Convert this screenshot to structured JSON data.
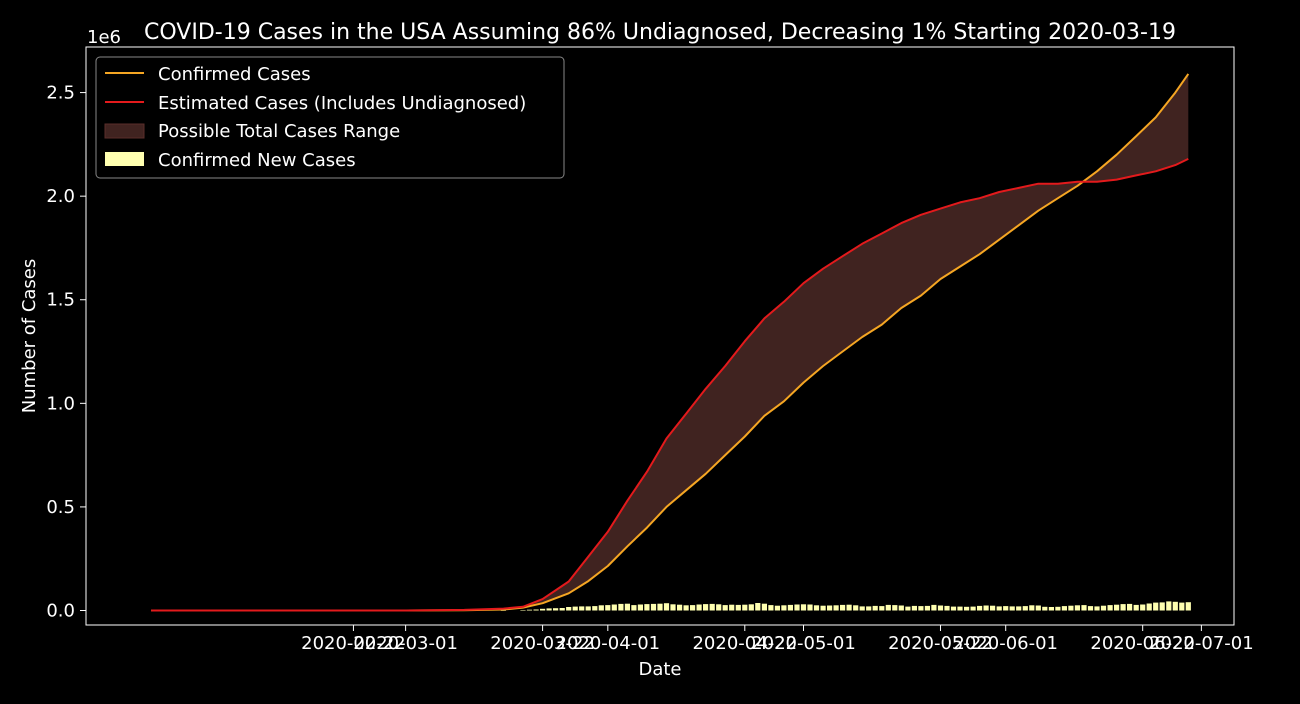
{
  "chart_data": {
    "type": "line",
    "title": "COVID-19 Cases in the USA Assuming 86% Undiagnosed, Decreasing 1% Starting 2020-03-19",
    "xlabel": "Date",
    "ylabel": "Number of Cases",
    "y_multiplier_label": "1e6",
    "ylim": [
      -0.07,
      2.72
    ],
    "xlim": [
      "2020-01-12",
      "2020-07-06"
    ],
    "y_ticks": [
      0.0,
      0.5,
      1.0,
      1.5,
      2.0,
      2.5
    ],
    "y_tick_labels": [
      "0.0",
      "0.5",
      "1.0",
      "1.5",
      "2.0",
      "2.5"
    ],
    "x_ticks": [
      "2020-02-22",
      "2020-03-01",
      "2020-03-22",
      "2020-04-01",
      "2020-04-22",
      "2020-05-01",
      "2020-05-22",
      "2020-06-01",
      "2020-06-22",
      "2020-07-01"
    ],
    "x_tick_labels": [
      "2020-02-22",
      "2020-03-01",
      "2020-03-22",
      "2020-04-01",
      "2020-04-22",
      "2020-05-01",
      "2020-05-22",
      "2020-06-01",
      "2020-06-22",
      "2020-07-01"
    ],
    "legend_placement": "top-left",
    "grid": false,
    "colors": {
      "background": "#000000",
      "text": "#ffffff",
      "confirmed": "#f5a623",
      "estimated": "#e31a1c",
      "range_fill": "#402320",
      "new_cases": "#ffffb0"
    },
    "series": [
      {
        "name": "Confirmed Cases",
        "kind": "line",
        "color": "#f5a623",
        "points": [
          [
            "2020-01-22",
            0.0
          ],
          [
            "2020-03-01",
            0.0
          ],
          [
            "2020-03-10",
            0.001
          ],
          [
            "2020-03-16",
            0.005
          ],
          [
            "2020-03-19",
            0.014
          ],
          [
            "2020-03-22",
            0.035
          ],
          [
            "2020-03-26",
            0.083
          ],
          [
            "2020-03-29",
            0.142
          ],
          [
            "2020-04-01",
            0.215
          ],
          [
            "2020-04-04",
            0.31
          ],
          [
            "2020-04-07",
            0.4
          ],
          [
            "2020-04-10",
            0.5
          ],
          [
            "2020-04-13",
            0.58
          ],
          [
            "2020-04-16",
            0.66
          ],
          [
            "2020-04-19",
            0.75
          ],
          [
            "2020-04-22",
            0.84
          ],
          [
            "2020-04-25",
            0.94
          ],
          [
            "2020-04-28",
            1.01
          ],
          [
            "2020-05-01",
            1.1
          ],
          [
            "2020-05-04",
            1.18
          ],
          [
            "2020-05-07",
            1.25
          ],
          [
            "2020-05-10",
            1.32
          ],
          [
            "2020-05-13",
            1.38
          ],
          [
            "2020-05-16",
            1.46
          ],
          [
            "2020-05-19",
            1.52
          ],
          [
            "2020-05-22",
            1.6
          ],
          [
            "2020-05-25",
            1.66
          ],
          [
            "2020-05-28",
            1.72
          ],
          [
            "2020-05-31",
            1.79
          ],
          [
            "2020-06-03",
            1.86
          ],
          [
            "2020-06-06",
            1.93
          ],
          [
            "2020-06-09",
            1.99
          ],
          [
            "2020-06-12",
            2.05
          ],
          [
            "2020-06-15",
            2.12
          ],
          [
            "2020-06-18",
            2.2
          ],
          [
            "2020-06-21",
            2.29
          ],
          [
            "2020-06-24",
            2.38
          ],
          [
            "2020-06-27",
            2.5
          ],
          [
            "2020-06-29",
            2.59
          ]
        ]
      },
      {
        "name": "Estimated Cases (Includes Undiagnosed)",
        "kind": "line",
        "color": "#e31a1c",
        "points": [
          [
            "2020-01-22",
            0.0
          ],
          [
            "2020-03-01",
            0.0
          ],
          [
            "2020-03-10",
            0.003
          ],
          [
            "2020-03-16",
            0.009
          ],
          [
            "2020-03-19",
            0.018
          ],
          [
            "2020-03-22",
            0.055
          ],
          [
            "2020-03-26",
            0.14
          ],
          [
            "2020-03-29",
            0.26
          ],
          [
            "2020-04-01",
            0.38
          ],
          [
            "2020-04-04",
            0.53
          ],
          [
            "2020-04-07",
            0.67
          ],
          [
            "2020-04-10",
            0.83
          ],
          [
            "2020-04-13",
            0.95
          ],
          [
            "2020-04-16",
            1.07
          ],
          [
            "2020-04-19",
            1.18
          ],
          [
            "2020-04-22",
            1.3
          ],
          [
            "2020-04-25",
            1.41
          ],
          [
            "2020-04-28",
            1.49
          ],
          [
            "2020-05-01",
            1.58
          ],
          [
            "2020-05-04",
            1.65
          ],
          [
            "2020-05-07",
            1.71
          ],
          [
            "2020-05-10",
            1.77
          ],
          [
            "2020-05-13",
            1.82
          ],
          [
            "2020-05-16",
            1.87
          ],
          [
            "2020-05-19",
            1.91
          ],
          [
            "2020-05-22",
            1.94
          ],
          [
            "2020-05-25",
            1.97
          ],
          [
            "2020-05-28",
            1.99
          ],
          [
            "2020-05-31",
            2.02
          ],
          [
            "2020-06-03",
            2.04
          ],
          [
            "2020-06-06",
            2.06
          ],
          [
            "2020-06-09",
            2.06
          ],
          [
            "2020-06-12",
            2.07
          ],
          [
            "2020-06-15",
            2.07
          ],
          [
            "2020-06-18",
            2.08
          ],
          [
            "2020-06-21",
            2.1
          ],
          [
            "2020-06-24",
            2.12
          ],
          [
            "2020-06-27",
            2.15
          ],
          [
            "2020-06-29",
            2.18
          ]
        ]
      },
      {
        "name": "Possible Total Cases Range",
        "kind": "area",
        "color": "#402320",
        "between": [
          "Confirmed Cases",
          "Estimated Cases (Includes Undiagnosed)"
        ]
      },
      {
        "name": "Confirmed New Cases",
        "kind": "bar",
        "color": "#ffffb0",
        "bars": [
          [
            "2020-03-16",
            0.001
          ],
          [
            "2020-03-19",
            0.002
          ],
          [
            "2020-03-20",
            0.004
          ],
          [
            "2020-03-21",
            0.005
          ],
          [
            "2020-03-22",
            0.008
          ],
          [
            "2020-03-23",
            0.01
          ],
          [
            "2020-03-24",
            0.011
          ],
          [
            "2020-03-25",
            0.012
          ],
          [
            "2020-03-26",
            0.017
          ],
          [
            "2020-03-27",
            0.019
          ],
          [
            "2020-03-28",
            0.02
          ],
          [
            "2020-03-29",
            0.02
          ],
          [
            "2020-03-30",
            0.021
          ],
          [
            "2020-03-31",
            0.025
          ],
          [
            "2020-04-01",
            0.026
          ],
          [
            "2020-04-02",
            0.029
          ],
          [
            "2020-04-03",
            0.032
          ],
          [
            "2020-04-04",
            0.033
          ],
          [
            "2020-04-05",
            0.026
          ],
          [
            "2020-04-06",
            0.029
          ],
          [
            "2020-04-07",
            0.031
          ],
          [
            "2020-04-08",
            0.032
          ],
          [
            "2020-04-09",
            0.033
          ],
          [
            "2020-04-10",
            0.035
          ],
          [
            "2020-04-11",
            0.03
          ],
          [
            "2020-04-12",
            0.028
          ],
          [
            "2020-04-13",
            0.025
          ],
          [
            "2020-04-14",
            0.026
          ],
          [
            "2020-04-15",
            0.029
          ],
          [
            "2020-04-16",
            0.031
          ],
          [
            "2020-04-17",
            0.032
          ],
          [
            "2020-04-18",
            0.03
          ],
          [
            "2020-04-19",
            0.026
          ],
          [
            "2020-04-20",
            0.028
          ],
          [
            "2020-04-21",
            0.027
          ],
          [
            "2020-04-22",
            0.028
          ],
          [
            "2020-04-23",
            0.03
          ],
          [
            "2020-04-24",
            0.036
          ],
          [
            "2020-04-25",
            0.033
          ],
          [
            "2020-04-26",
            0.026
          ],
          [
            "2020-04-27",
            0.023
          ],
          [
            "2020-04-28",
            0.025
          ],
          [
            "2020-04-29",
            0.027
          ],
          [
            "2020-04-30",
            0.029
          ],
          [
            "2020-05-01",
            0.03
          ],
          [
            "2020-05-02",
            0.029
          ],
          [
            "2020-05-03",
            0.025
          ],
          [
            "2020-05-04",
            0.023
          ],
          [
            "2020-05-05",
            0.024
          ],
          [
            "2020-05-06",
            0.025
          ],
          [
            "2020-05-07",
            0.027
          ],
          [
            "2020-05-08",
            0.028
          ],
          [
            "2020-05-09",
            0.025
          ],
          [
            "2020-05-10",
            0.02
          ],
          [
            "2020-05-11",
            0.02
          ],
          [
            "2020-05-12",
            0.022
          ],
          [
            "2020-05-13",
            0.021
          ],
          [
            "2020-05-14",
            0.027
          ],
          [
            "2020-05-15",
            0.026
          ],
          [
            "2020-05-16",
            0.024
          ],
          [
            "2020-05-17",
            0.019
          ],
          [
            "2020-05-18",
            0.022
          ],
          [
            "2020-05-19",
            0.021
          ],
          [
            "2020-05-20",
            0.022
          ],
          [
            "2020-05-21",
            0.027
          ],
          [
            "2020-05-22",
            0.024
          ],
          [
            "2020-05-23",
            0.022
          ],
          [
            "2020-05-24",
            0.019
          ],
          [
            "2020-05-25",
            0.019
          ],
          [
            "2020-05-26",
            0.018
          ],
          [
            "2020-05-27",
            0.019
          ],
          [
            "2020-05-28",
            0.022
          ],
          [
            "2020-05-29",
            0.024
          ],
          [
            "2020-05-30",
            0.023
          ],
          [
            "2020-05-31",
            0.02
          ],
          [
            "2020-06-01",
            0.021
          ],
          [
            "2020-06-02",
            0.02
          ],
          [
            "2020-06-03",
            0.02
          ],
          [
            "2020-06-04",
            0.021
          ],
          [
            "2020-06-05",
            0.025
          ],
          [
            "2020-06-06",
            0.024
          ],
          [
            "2020-06-07",
            0.018
          ],
          [
            "2020-06-08",
            0.017
          ],
          [
            "2020-06-09",
            0.018
          ],
          [
            "2020-06-10",
            0.021
          ],
          [
            "2020-06-11",
            0.023
          ],
          [
            "2020-06-12",
            0.025
          ],
          [
            "2020-06-13",
            0.026
          ],
          [
            "2020-06-14",
            0.021
          ],
          [
            "2020-06-15",
            0.02
          ],
          [
            "2020-06-16",
            0.023
          ],
          [
            "2020-06-17",
            0.026
          ],
          [
            "2020-06-18",
            0.028
          ],
          [
            "2020-06-19",
            0.031
          ],
          [
            "2020-06-20",
            0.032
          ],
          [
            "2020-06-21",
            0.027
          ],
          [
            "2020-06-22",
            0.029
          ],
          [
            "2020-06-23",
            0.034
          ],
          [
            "2020-06-24",
            0.038
          ],
          [
            "2020-06-25",
            0.039
          ],
          [
            "2020-06-26",
            0.044
          ],
          [
            "2020-06-27",
            0.042
          ],
          [
            "2020-06-28",
            0.038
          ],
          [
            "2020-06-29",
            0.04
          ]
        ]
      }
    ]
  }
}
